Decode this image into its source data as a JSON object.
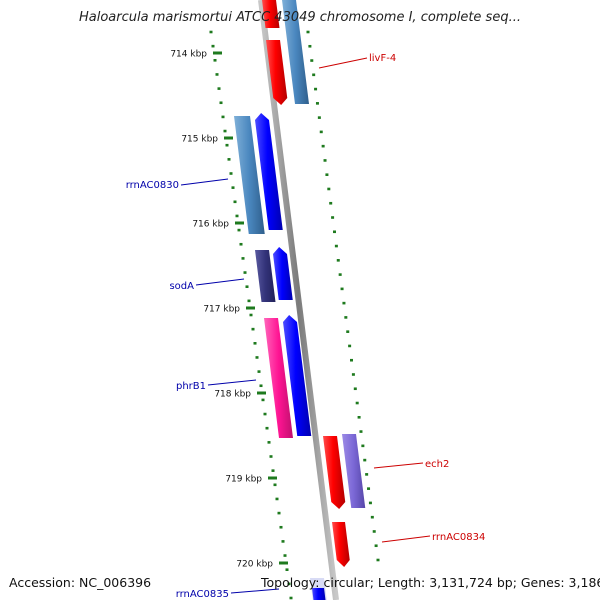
{
  "title": "Haloarcula marismortui ATCC 43049 chromosome I, complete seq...",
  "footer": {
    "accession": "Accession: NC_006396",
    "topology": "Topology: circular; Length: 3,131,724 bp; Genes: 3,186"
  },
  "colors": {
    "backbone": "#8a8a8a",
    "tick": "#1e7a1e",
    "label_red": "#cc0000",
    "label_blue": "#0000aa"
  },
  "ticks": [
    {
      "label": "714 kbp"
    },
    {
      "label": "715 kbp"
    },
    {
      "label": "716 kbp"
    },
    {
      "label": "717 kbp"
    },
    {
      "label": "718 kbp"
    },
    {
      "label": "719 kbp"
    },
    {
      "label": "720 kbp"
    }
  ],
  "genes": [
    {
      "label": "livF-4",
      "color": "#cc0000"
    },
    {
      "label": "rrnAC0830",
      "color": "#0000aa"
    },
    {
      "label": "sodA",
      "color": "#0000aa"
    },
    {
      "label": "phrB1",
      "color": "#0000aa"
    },
    {
      "label": "ech2",
      "color": "#cc0000"
    },
    {
      "label": "rrnAC0834",
      "color": "#cc0000"
    },
    {
      "label": "rrnAC0835",
      "color": "#0000aa"
    }
  ]
}
